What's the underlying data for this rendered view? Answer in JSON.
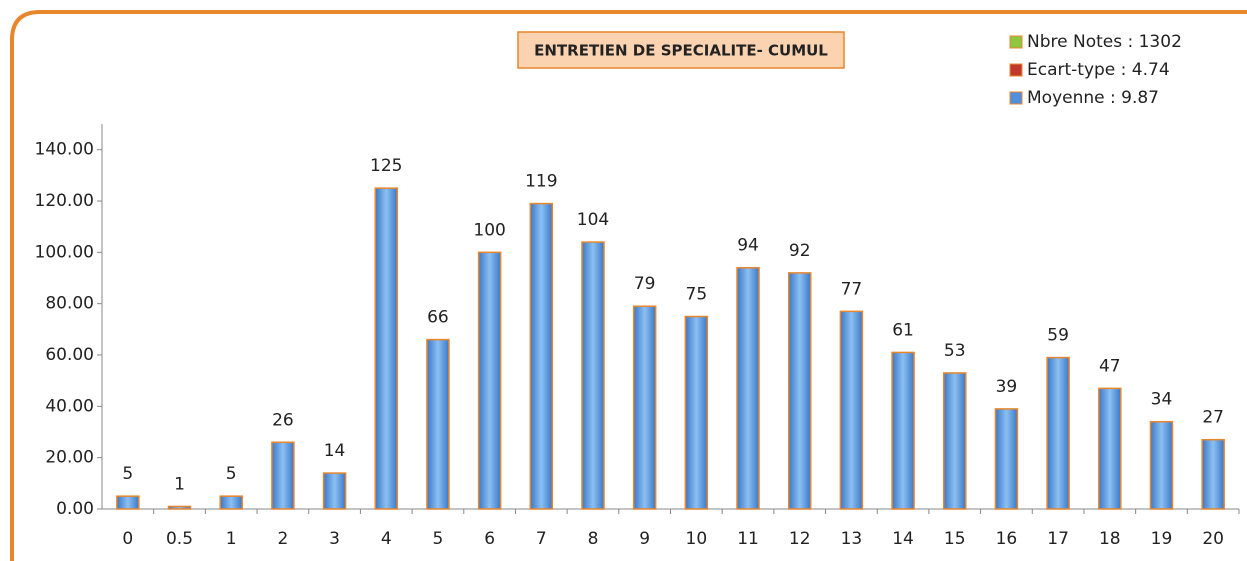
{
  "chart_data": {
    "type": "bar",
    "title": "ENTRETIEN DE SPECIALITE- CUMUL",
    "categories": [
      "0",
      "0.5",
      "1",
      "2",
      "3",
      "4",
      "5",
      "6",
      "7",
      "8",
      "9",
      "10",
      "11",
      "12",
      "13",
      "14",
      "15",
      "16",
      "17",
      "18",
      "19",
      "20"
    ],
    "values": [
      5,
      1,
      5,
      26,
      14,
      125,
      66,
      100,
      119,
      104,
      79,
      75,
      94,
      92,
      77,
      61,
      53,
      39,
      59,
      47,
      34,
      27
    ],
    "color": "#4f8fdc",
    "border_color": "#e8862c",
    "ylim": [
      0,
      150
    ],
    "yticks": [
      {
        "value": 0,
        "label": "0.00"
      },
      {
        "value": 20,
        "label": "20.00"
      },
      {
        "value": 40,
        "label": "40.00"
      },
      {
        "value": 60,
        "label": "60.00"
      },
      {
        "value": 80,
        "label": "80.00"
      },
      {
        "value": 100,
        "label": "100.00"
      },
      {
        "value": 120,
        "label": "120.00"
      },
      {
        "value": 140,
        "label": "140.00"
      }
    ],
    "legend": [
      {
        "label": "Nbre Notes : 1302",
        "color": "#8dc63f"
      },
      {
        "label": "Ecart-type : 4.74",
        "color": "#c0392b"
      },
      {
        "label": "Moyenne : 9.87",
        "color": "#4f8fdc"
      }
    ]
  }
}
